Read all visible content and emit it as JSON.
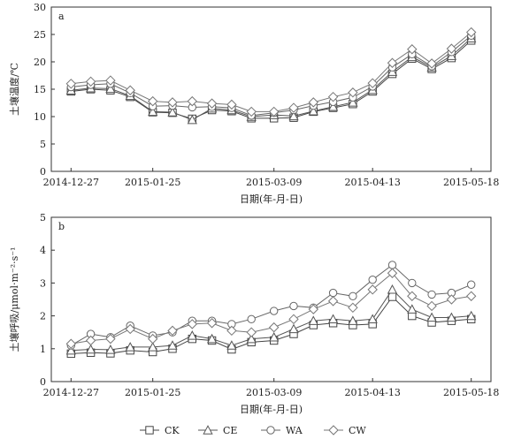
{
  "chart_data": [
    {
      "type": "line",
      "panel_label": "a",
      "title": "",
      "xlabel": "日期(年-月-日)",
      "ylabel": "土壤温度/℃",
      "ylim": [
        0,
        30
      ],
      "yticks": [
        0,
        5,
        10,
        15,
        20,
        25,
        30
      ],
      "xlim": [
        "2014-12-20",
        "2015-05-25"
      ],
      "xticks": [
        "2014-12-27",
        "2015-01-25",
        "2015-03-09",
        "2015-04-13",
        "2015-05-18"
      ],
      "x": [
        "2014-12-27",
        "2015-01-03",
        "2015-01-10",
        "2015-01-17",
        "2015-01-25",
        "2015-02-01",
        "2015-02-08",
        "2015-02-15",
        "2015-02-22",
        "2015-03-01",
        "2015-03-09",
        "2015-03-16",
        "2015-03-23",
        "2015-03-30",
        "2015-04-06",
        "2015-04-13",
        "2015-04-20",
        "2015-04-27",
        "2015-05-04",
        "2015-05-11",
        "2015-05-18"
      ],
      "series": [
        {
          "name": "CK",
          "values": [
            14.6,
            15.0,
            14.8,
            13.6,
            10.8,
            10.7,
            9.6,
            11.2,
            11.0,
            9.7,
            9.7,
            9.8,
            10.9,
            11.6,
            12.3,
            14.6,
            17.8,
            20.6,
            18.7,
            20.7,
            23.9
          ]
        },
        {
          "name": "CE",
          "values": [
            14.8,
            15.2,
            15.1,
            13.8,
            10.9,
            10.8,
            9.4,
            11.5,
            11.2,
            10.0,
            10.3,
            10.1,
            11.0,
            11.8,
            12.6,
            14.9,
            18.2,
            20.9,
            19.0,
            21.1,
            24.3
          ]
        },
        {
          "name": "WA",
          "values": [
            15.4,
            15.8,
            16.0,
            14.3,
            11.9,
            12.0,
            11.7,
            11.8,
            11.6,
            10.2,
            10.7,
            11.2,
            12.0,
            12.7,
            13.5,
            15.5,
            19.0,
            21.4,
            19.2,
            21.8,
            24.8
          ]
        },
        {
          "name": "CW",
          "values": [
            16.0,
            16.4,
            16.6,
            14.8,
            12.8,
            12.6,
            12.8,
            12.4,
            12.2,
            10.9,
            10.9,
            11.6,
            12.6,
            13.6,
            14.4,
            16.1,
            19.8,
            22.3,
            19.7,
            22.4,
            25.4
          ]
        }
      ],
      "legend": "bottom",
      "grid": false
    },
    {
      "type": "line",
      "panel_label": "b",
      "title": "",
      "xlabel": "日期(年-月-日)",
      "ylabel": "土壤呼吸/μmol·m⁻²·s⁻¹",
      "ylim": [
        0,
        5
      ],
      "yticks": [
        0,
        1,
        2,
        3,
        4,
        5
      ],
      "xlim": [
        "2014-12-20",
        "2015-05-25"
      ],
      "xticks": [
        "2014-12-27",
        "2015-01-25",
        "2015-03-09",
        "2015-04-13",
        "2015-05-18"
      ],
      "x": [
        "2014-12-27",
        "2015-01-03",
        "2015-01-10",
        "2015-01-17",
        "2015-01-25",
        "2015-02-01",
        "2015-02-08",
        "2015-02-15",
        "2015-02-22",
        "2015-03-01",
        "2015-03-09",
        "2015-03-16",
        "2015-03-23",
        "2015-03-30",
        "2015-04-06",
        "2015-04-13",
        "2015-04-20",
        "2015-04-27",
        "2015-05-04",
        "2015-05-11",
        "2015-05-18"
      ],
      "series": [
        {
          "name": "CK",
          "values": [
            0.85,
            0.88,
            0.86,
            0.95,
            0.9,
            1.0,
            1.3,
            1.25,
            0.98,
            1.2,
            1.25,
            1.45,
            1.72,
            1.78,
            1.72,
            1.75,
            2.58,
            2.0,
            1.8,
            1.85,
            1.9
          ]
        },
        {
          "name": "CE",
          "values": [
            0.95,
            0.98,
            0.97,
            1.05,
            1.05,
            1.1,
            1.4,
            1.3,
            1.1,
            1.3,
            1.35,
            1.6,
            1.85,
            1.9,
            1.85,
            1.9,
            2.8,
            2.2,
            1.95,
            1.95,
            2.0
          ]
        },
        {
          "name": "WA",
          "values": [
            1.1,
            1.45,
            1.35,
            1.7,
            1.4,
            1.5,
            1.85,
            1.85,
            1.75,
            1.9,
            2.15,
            2.3,
            2.25,
            2.7,
            2.6,
            3.1,
            3.55,
            3.0,
            2.65,
            2.7,
            2.95
          ]
        },
        {
          "name": "CW",
          "values": [
            1.15,
            1.25,
            1.3,
            1.6,
            1.3,
            1.55,
            1.75,
            1.78,
            1.55,
            1.5,
            1.65,
            1.9,
            2.2,
            2.45,
            2.25,
            2.8,
            3.3,
            2.6,
            2.3,
            2.5,
            2.6
          ]
        }
      ],
      "legend": "bottom",
      "grid": false
    }
  ],
  "legend": [
    {
      "name": "CK",
      "marker": "square"
    },
    {
      "name": "CE",
      "marker": "triangle"
    },
    {
      "name": "WA",
      "marker": "circle"
    },
    {
      "name": "CW",
      "marker": "diamond"
    }
  ],
  "colors": {
    "CK": "#444444",
    "CE": "#555555",
    "WA": "#666666",
    "CW": "#777777"
  }
}
